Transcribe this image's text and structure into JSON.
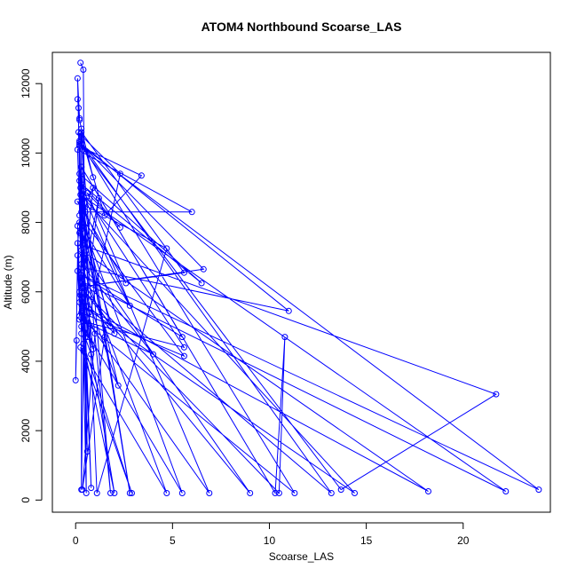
{
  "chart_data": {
    "type": "line",
    "title": "ATOM4 Northbound Scoarse_LAS",
    "xlabel": "Scoarse_LAS",
    "ylabel": "Altitude (m)",
    "xlim": [
      -1.2,
      24.5
    ],
    "ylim": [
      -350,
      12900
    ],
    "xticks": [
      "0",
      "5",
      "10",
      "15",
      "20"
    ],
    "yticks": [
      "0",
      "2000",
      "4000",
      "6000",
      "8000",
      "10000",
      "12000"
    ],
    "grid": false,
    "legend": "none",
    "series_color": "#0000ff",
    "series": [
      {
        "points": [
          [
            0.25,
            12600
          ],
          [
            0.4,
            12400
          ],
          [
            0.55,
            200
          ],
          [
            0.1,
            12150
          ],
          [
            0.2,
            11000
          ],
          [
            0.1,
            11550
          ],
          [
            0.15,
            11300
          ],
          [
            0.2,
            10950
          ],
          [
            0.3,
            10700
          ],
          [
            0.9,
            9300
          ],
          [
            0.3,
            10500
          ],
          [
            2.3,
            9400
          ],
          [
            0.5,
            4700
          ],
          [
            0.2,
            10200
          ],
          [
            3.4,
            9350
          ],
          [
            1.5,
            8200
          ],
          [
            0.25,
            10550
          ],
          [
            0.6,
            1400
          ],
          [
            0.1,
            10100
          ],
          [
            6.0,
            8300
          ],
          [
            0.5,
            8300
          ],
          [
            0.3,
            10450
          ],
          [
            1.8,
            200
          ],
          [
            0.2,
            9200
          ],
          [
            2.3,
            7850
          ],
          [
            0.6,
            8850
          ],
          [
            2.6,
            6250
          ],
          [
            0.1,
            8600
          ],
          [
            4.7,
            7250
          ],
          [
            1.1,
            200
          ],
          [
            0.3,
            10600
          ],
          [
            5.6,
            6550
          ],
          [
            0.3,
            6150
          ],
          [
            6.6,
            6650
          ],
          [
            0.2,
            10300
          ],
          [
            11.0,
            5450
          ],
          [
            0.4,
            6700
          ],
          [
            0.2,
            9400
          ],
          [
            6.5,
            6250
          ],
          [
            0.3,
            9100
          ],
          [
            2.8,
            200
          ],
          [
            0.4,
            8400
          ],
          [
            2.8,
            5600
          ],
          [
            0.2,
            8000
          ],
          [
            0.8,
            350
          ],
          [
            0.35,
            7350
          ],
          [
            21.7,
            3050
          ],
          [
            13.7,
            300
          ],
          [
            0.2,
            10250
          ],
          [
            23.9,
            300
          ],
          [
            0.25,
            6500
          ],
          [
            5.5,
            4700
          ],
          [
            0.3,
            9600
          ],
          [
            10.3,
            200
          ],
          [
            10.8,
            4700
          ],
          [
            10.5,
            200
          ],
          [
            0.3,
            6100
          ],
          [
            9.0,
            200
          ],
          [
            0.3,
            7200
          ],
          [
            18.2,
            250
          ],
          [
            0.35,
            5600
          ],
          [
            14.4,
            200
          ],
          [
            0.25,
            8800
          ],
          [
            22.2,
            250
          ],
          [
            0.3,
            6300
          ],
          [
            13.2,
            200
          ],
          [
            0.2,
            10350
          ],
          [
            11.3,
            200
          ],
          [
            0.4,
            5150
          ],
          [
            5.6,
            4400
          ],
          [
            0.25,
            9000
          ],
          [
            6.9,
            200
          ],
          [
            0.3,
            5400
          ],
          [
            5.6,
            4150
          ],
          [
            0.2,
            8200
          ],
          [
            5.5,
            200
          ],
          [
            0.2,
            5200
          ],
          [
            4.0,
            4200
          ],
          [
            0.3,
            6800
          ],
          [
            4.7,
            200
          ],
          [
            0.25,
            4400
          ],
          [
            2.9,
            200
          ],
          [
            0.4,
            4500
          ],
          [
            2.0,
            200
          ],
          [
            0.35,
            5800
          ],
          [
            2.0,
            4800
          ],
          [
            0.3,
            7800
          ],
          [
            2.2,
            3300
          ],
          [
            0.25,
            6400
          ],
          [
            1.8,
            5000
          ],
          [
            0.3,
            8300
          ],
          [
            1.5,
            4700
          ],
          [
            0.35,
            300
          ],
          [
            1.0,
            4800
          ],
          [
            0.25,
            5900
          ],
          [
            0.9,
            4350
          ],
          [
            0.2,
            7700
          ],
          [
            0.8,
            4200
          ],
          [
            0.3,
            5000
          ],
          [
            0.6,
            4700
          ],
          [
            0.15,
            10600
          ],
          [
            0.4,
            4300
          ],
          [
            0.3,
            300
          ],
          [
            0.3,
            9600
          ],
          [
            0.7,
            5400
          ],
          [
            0.2,
            6000
          ],
          [
            1.2,
            8700
          ],
          [
            0.3,
            4800
          ],
          [
            0.1,
            7900
          ],
          [
            0.9,
            9000
          ],
          [
            0.2,
            5300
          ],
          [
            0.1,
            7400
          ],
          [
            0.4,
            8900
          ],
          [
            0.2,
            5700
          ],
          [
            0.1,
            6600
          ],
          [
            0.1,
            7050
          ],
          [
            0.0,
            3450
          ],
          [
            0.05,
            4600
          ]
        ]
      }
    ]
  }
}
